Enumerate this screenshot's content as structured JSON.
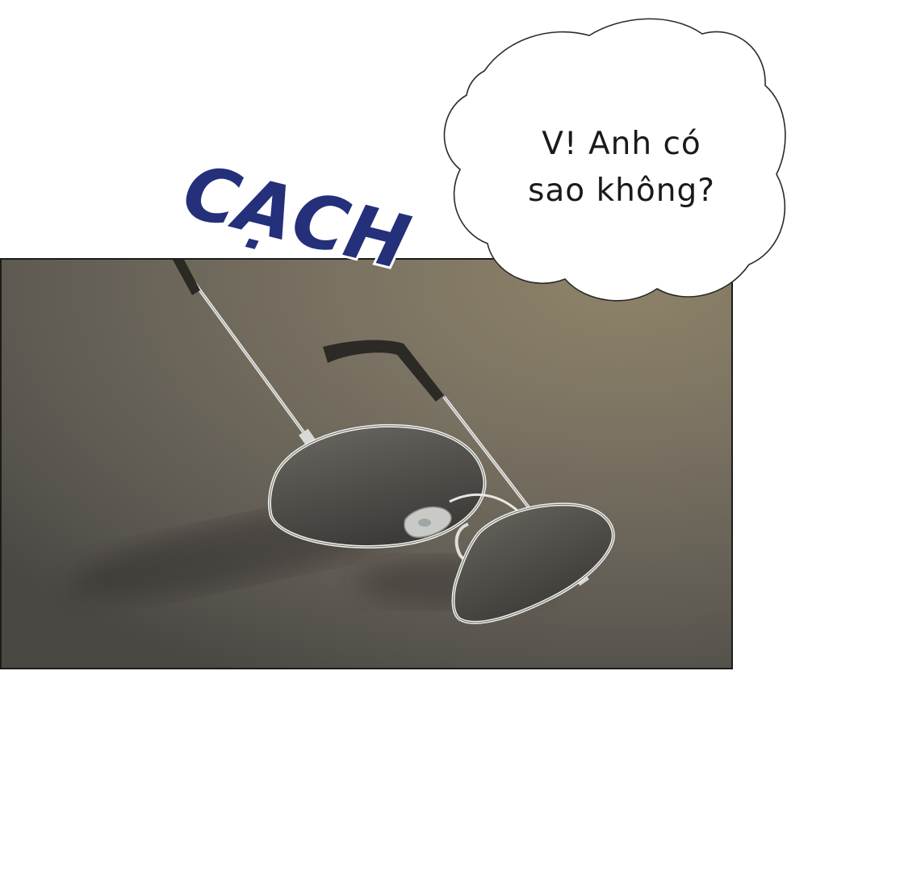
{
  "dialogue": {
    "line_1": "V! Anh có",
    "line_2": "sao không?"
  },
  "sound_effect": {
    "text": "CẠCH",
    "color": "#24307a"
  },
  "panel": {
    "subject": "glasses-icon",
    "background_color": "#6d685c"
  }
}
